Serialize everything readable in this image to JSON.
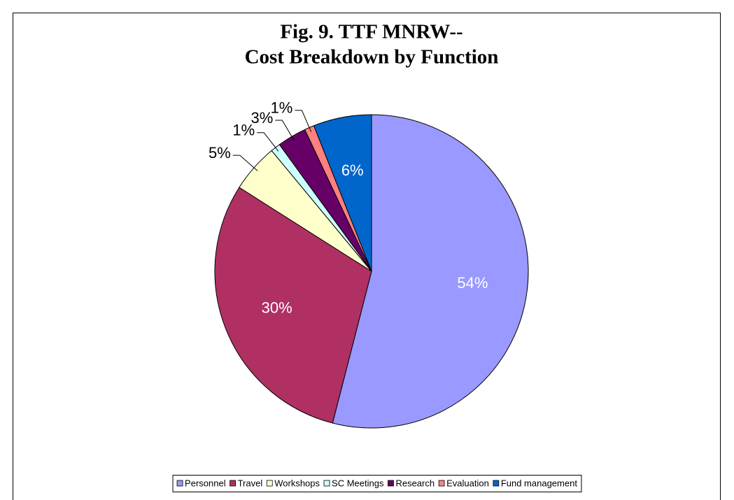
{
  "chart_data": {
    "type": "pie",
    "title": [
      "Fig. 9.  TTF MNRW--",
      "Cost Breakdown by Function"
    ],
    "categories": [
      "Personnel",
      "Travel",
      "Workshops",
      "SC Meetings",
      "Research",
      "Evaluation",
      "Fund management"
    ],
    "values": [
      54,
      30,
      5,
      1,
      3,
      1,
      6
    ],
    "value_labels": [
      "54%",
      "30%",
      "5%",
      "1%",
      "3%",
      "1%",
      "6%"
    ],
    "colors": [
      "#9999ff",
      "#b03064",
      "#ffffcc",
      "#ccffff",
      "#660066",
      "#ff8080",
      "#0066cc"
    ],
    "legend": "bottom"
  }
}
